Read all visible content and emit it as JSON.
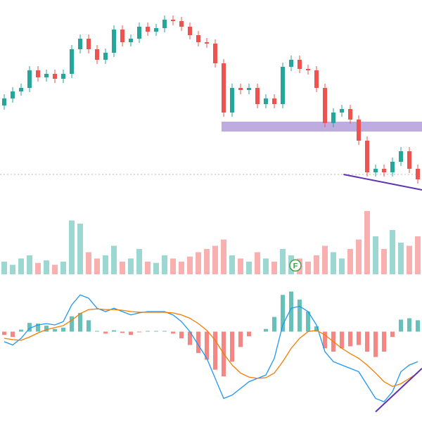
{
  "chart_data": [
    {
      "type": "candlestick",
      "ylim": [
        310,
        600
      ],
      "up_color": "#26a69a",
      "down_color": "#ef5350",
      "open": [
        450,
        460,
        470,
        475,
        500,
        490,
        495,
        488,
        495,
        530,
        545,
        530,
        515,
        525,
        558,
        540,
        545,
        562,
        555,
        560,
        572,
        570,
        562,
        550,
        540,
        538,
        510,
        440,
        475,
        472,
        475,
        452,
        460,
        452,
        505,
        515,
        502,
        500,
        475,
        425,
        440,
        445,
        430,
        400,
        355,
        360,
        355,
        370,
        385,
        360
      ],
      "high": [
        466,
        476,
        481,
        506,
        506,
        501,
        501,
        501,
        536,
        551,
        551,
        536,
        531,
        564,
        564,
        551,
        568,
        568,
        566,
        578,
        578,
        576,
        568,
        556,
        546,
        544,
        516,
        481,
        481,
        481,
        481,
        466,
        466,
        511,
        521,
        521,
        508,
        506,
        481,
        446,
        451,
        451,
        436,
        406,
        366,
        366,
        376,
        391,
        391,
        366
      ],
      "low": [
        444,
        454,
        464,
        469,
        484,
        484,
        482,
        482,
        489,
        524,
        524,
        509,
        509,
        519,
        534,
        534,
        539,
        549,
        549,
        554,
        564,
        556,
        544,
        534,
        532,
        504,
        434,
        434,
        466,
        466,
        446,
        446,
        446,
        446,
        499,
        496,
        494,
        469,
        419,
        419,
        434,
        424,
        394,
        349,
        349,
        349,
        349,
        364,
        354,
        339
      ],
      "close": [
        460,
        470,
        475,
        500,
        490,
        495,
        488,
        495,
        530,
        545,
        530,
        515,
        525,
        558,
        540,
        545,
        562,
        555,
        560,
        572,
        570,
        562,
        550,
        540,
        538,
        510,
        440,
        475,
        472,
        475,
        452,
        460,
        452,
        505,
        515,
        502,
        500,
        475,
        425,
        440,
        445,
        430,
        400,
        355,
        360,
        355,
        370,
        385,
        360,
        345
      ],
      "zone": {
        "color": "#b39ddb",
        "x": [
          25.75,
          50
        ],
        "y": [
          413,
          427
        ]
      },
      "level": 352,
      "trendline": {
        "color": "#5e35b1",
        "points": [
          [
            40.2,
            352
          ],
          [
            49.5,
            330
          ]
        ]
      }
    },
    {
      "type": "volume",
      "ylim": [
        0,
        100
      ],
      "values": [
        20,
        15,
        25,
        30,
        18,
        22,
        15,
        20,
        85,
        80,
        35,
        25,
        30,
        45,
        20,
        25,
        40,
        20,
        18,
        30,
        25,
        20,
        28,
        35,
        40,
        45,
        55,
        30,
        25,
        20,
        35,
        25,
        20,
        40,
        30,
        25,
        20,
        30,
        45,
        35,
        25,
        40,
        55,
        100,
        60,
        40,
        70,
        50,
        45,
        60
      ],
      "marker": {
        "text": "F",
        "x": 34.5,
        "y": 14,
        "color": "#43a047"
      }
    },
    {
      "type": "macd",
      "ylim": [
        -130,
        70
      ],
      "macd_color": "#2196f3",
      "signal_color": "#f57c00",
      "macd": [
        -15,
        -20,
        -10,
        5,
        10,
        12,
        10,
        15,
        40,
        55,
        50,
        35,
        30,
        35,
        30,
        25,
        28,
        30,
        30,
        30,
        25,
        15,
        0,
        -20,
        -40,
        -70,
        -100,
        -95,
        -85,
        -75,
        -70,
        -65,
        -40,
        10,
        35,
        38,
        30,
        10,
        -30,
        -45,
        -50,
        -55,
        -60,
        -80,
        -100,
        -105,
        -90,
        -60,
        -50,
        -45
      ],
      "signal": [
        -10,
        -12,
        -13,
        -8,
        -2,
        3,
        6,
        9,
        17,
        27,
        33,
        34,
        33,
        33,
        32,
        30,
        29,
        29,
        29,
        29,
        28,
        25,
        20,
        12,
        2,
        -13,
        -33,
        -50,
        -62,
        -68,
        -70,
        -69,
        -62,
        -45,
        -25,
        -10,
        0,
        2,
        -5,
        -15,
        -25,
        -33,
        -40,
        -50,
        -62,
        -75,
        -82,
        -78,
        -70,
        -62
      ],
      "histogram": [
        -5,
        -8,
        3,
        13,
        12,
        9,
        4,
        6,
        23,
        28,
        17,
        1,
        -3,
        2,
        -2,
        -5,
        -1,
        1,
        1,
        1,
        -3,
        -10,
        -20,
        -32,
        -42,
        -57,
        -67,
        -45,
        -23,
        -7,
        0,
        4,
        22,
        55,
        60,
        48,
        30,
        8,
        -25,
        -30,
        -25,
        -22,
        -20,
        -30,
        -38,
        -30,
        -8,
        18,
        20,
        17
      ],
      "trendline": {
        "color": "#5e35b1",
        "points": [
          [
            44,
            -120
          ],
          [
            49.5,
            -55
          ]
        ]
      }
    }
  ]
}
